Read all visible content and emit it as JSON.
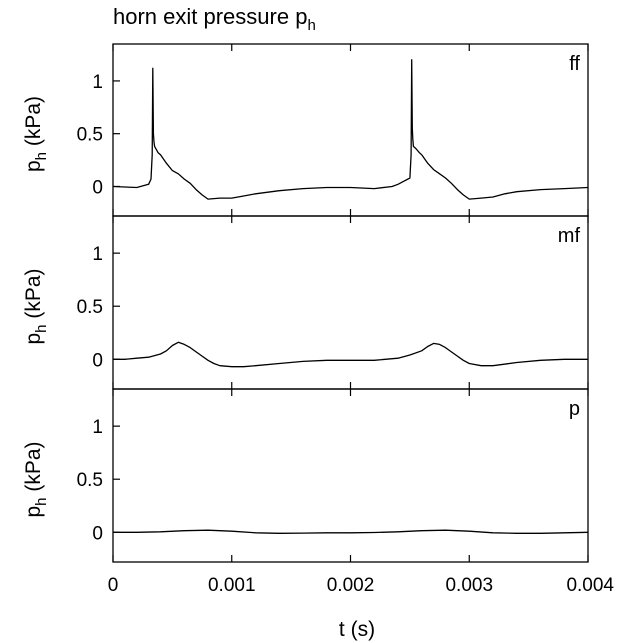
{
  "chart_data": {
    "type": "line",
    "title": "horn exit pressure p",
    "title_subscript": "h",
    "xlabel": "t (s)",
    "ylabel_main": "p",
    "ylabel_subscript": "h",
    "ylabel_unit": " (kPa)",
    "xlim": [
      0,
      0.004
    ],
    "ylim": [
      -0.28,
      1.35
    ],
    "x_ticks": [
      0,
      0.001,
      0.002,
      0.003,
      0.004
    ],
    "x_tick_labels": [
      "0",
      "0.001",
      "0.002",
      "0.003",
      "0.004"
    ],
    "y_ticks": [
      0,
      0.5,
      1
    ],
    "y_tick_labels": [
      "0",
      "0.5",
      "1"
    ],
    "grid": false,
    "panels": [
      {
        "label": "ff",
        "series": [
          {
            "x": [
              0,
              0.0002,
              0.0003,
              0.00032,
              0.00033,
              0.000335,
              0.00034,
              0.000345,
              0.00035,
              0.00038,
              0.0004,
              0.00045,
              0.0005,
              0.00055,
              0.0006,
              0.00065,
              0.0007,
              0.00075,
              0.0008,
              0.0009,
              0.001,
              0.0011,
              0.0012,
              0.0014,
              0.0016,
              0.0018,
              0.002,
              0.0022,
              0.00235,
              0.0024,
              0.00245,
              0.0025,
              0.00251,
              0.002515,
              0.00252,
              0.002525,
              0.00253,
              0.00255,
              0.00258,
              0.0026,
              0.00265,
              0.0027,
              0.00275,
              0.0028,
              0.00285,
              0.0029,
              0.00295,
              0.003,
              0.0031,
              0.0032,
              0.0033,
              0.0034,
              0.0036,
              0.0038,
              0.004
            ],
            "y": [
              0.0,
              -0.01,
              0.02,
              0.07,
              0.3,
              1.12,
              0.5,
              0.42,
              0.38,
              0.32,
              0.3,
              0.22,
              0.15,
              0.12,
              0.07,
              0.03,
              -0.03,
              -0.08,
              -0.12,
              -0.11,
              -0.11,
              -0.09,
              -0.07,
              -0.04,
              -0.02,
              -0.01,
              -0.01,
              -0.02,
              0.0,
              0.02,
              0.05,
              0.08,
              0.3,
              1.2,
              0.55,
              0.45,
              0.38,
              0.36,
              0.32,
              0.3,
              0.22,
              0.16,
              0.12,
              0.08,
              0.03,
              -0.03,
              -0.08,
              -0.12,
              -0.11,
              -0.1,
              -0.07,
              -0.05,
              -0.03,
              -0.02,
              -0.01
            ]
          }
        ]
      },
      {
        "label": "mf",
        "series": [
          {
            "x": [
              0,
              0.0001,
              0.0002,
              0.0003,
              0.0004,
              0.00045,
              0.0005,
              0.00055,
              0.0006,
              0.00065,
              0.0007,
              0.00075,
              0.0008,
              0.00085,
              0.0009,
              0.001,
              0.0011,
              0.0012,
              0.0014,
              0.0016,
              0.0018,
              0.002,
              0.0022,
              0.0024,
              0.0025,
              0.0026,
              0.00265,
              0.0027,
              0.00275,
              0.0028,
              0.00285,
              0.0029,
              0.00295,
              0.003,
              0.0031,
              0.0032,
              0.0034,
              0.0036,
              0.0038,
              0.004
            ],
            "y": [
              0.0,
              0.0,
              0.01,
              0.02,
              0.05,
              0.08,
              0.13,
              0.16,
              0.14,
              0.11,
              0.07,
              0.03,
              -0.01,
              -0.04,
              -0.06,
              -0.07,
              -0.07,
              -0.06,
              -0.04,
              -0.02,
              -0.01,
              -0.01,
              -0.01,
              0.01,
              0.04,
              0.08,
              0.12,
              0.15,
              0.14,
              0.11,
              0.07,
              0.03,
              -0.01,
              -0.04,
              -0.06,
              -0.06,
              -0.03,
              -0.01,
              0.0,
              0.0
            ]
          }
        ]
      },
      {
        "label": "p",
        "series": [
          {
            "x": [
              0,
              0.0002,
              0.0004,
              0.0006,
              0.0008,
              0.001,
              0.0012,
              0.0014,
              0.0016,
              0.0018,
              0.002,
              0.0022,
              0.0024,
              0.0026,
              0.0028,
              0.003,
              0.0032,
              0.0034,
              0.0036,
              0.0038,
              0.004
            ],
            "y": [
              0.0,
              0.0,
              0.005,
              0.015,
              0.02,
              0.01,
              -0.005,
              -0.01,
              -0.008,
              -0.005,
              -0.005,
              -0.002,
              0.005,
              0.015,
              0.02,
              0.01,
              -0.005,
              -0.01,
              -0.01,
              -0.005,
              0.0
            ]
          }
        ]
      }
    ]
  }
}
